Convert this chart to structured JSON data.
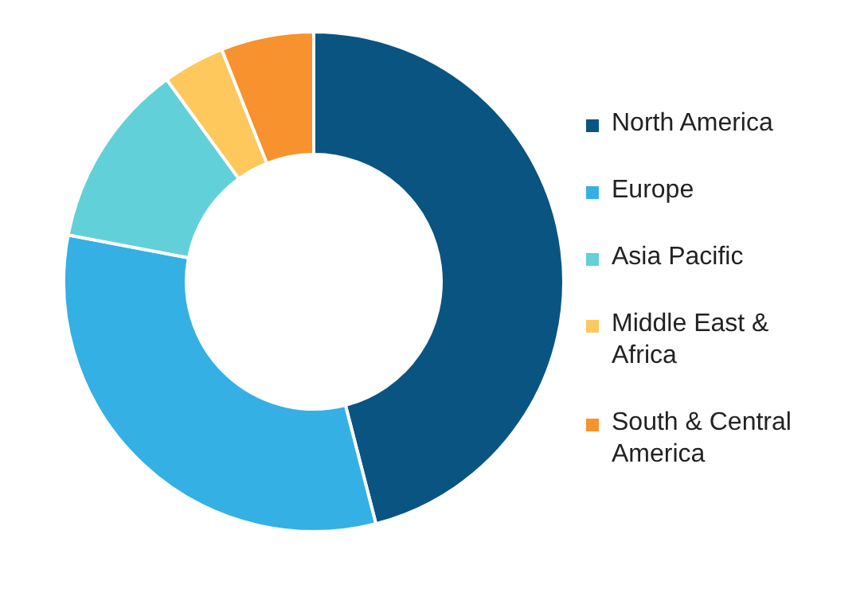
{
  "chart_data": {
    "type": "donut",
    "categories": [
      "North America",
      "Europe",
      "Asia Pacific",
      "Middle East & Africa",
      "South & Central America"
    ],
    "values": [
      46,
      32,
      12,
      4,
      6
    ],
    "colors": [
      "#0a5482",
      "#35b0e4",
      "#62d0d8",
      "#fec85d",
      "#f7922e"
    ],
    "legend": "right"
  }
}
